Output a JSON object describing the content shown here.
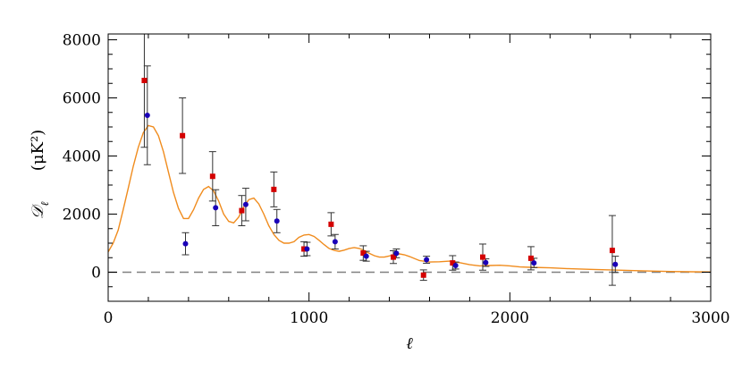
{
  "chart_data": {
    "type": "scatter",
    "title": "",
    "xlabel": "ℓ",
    "ylabel_symbol": "𝒟",
    "ylabel_subscript": "ℓ",
    "ylabel_unit": "(μK²)",
    "xlim": [
      0,
      3000
    ],
    "ylim": [
      -1000,
      8200
    ],
    "xticks": [
      0,
      1000,
      2000,
      3000
    ],
    "yticks": [
      0,
      2000,
      4000,
      6000,
      8000
    ],
    "xticks_labels": [
      "0",
      "1000",
      "2000",
      "3000"
    ],
    "yticks_labels": [
      "0",
      "2000",
      "4000",
      "6000",
      "8000"
    ],
    "grid": false,
    "zero_line": {
      "y": 0,
      "style": "dashed",
      "color": "#808080"
    },
    "colors": {
      "series_red": "#d40000",
      "series_blue": "#1a00b8",
      "model": "#f08c1e",
      "errorbar": "#333333"
    },
    "series": [
      {
        "marker": "square",
        "color": "#d40000",
        "points": [
          {
            "x": 180,
            "y": 6600,
            "err": 2300
          },
          {
            "x": 370,
            "y": 4700,
            "err": 1300
          },
          {
            "x": 520,
            "y": 3300,
            "err": 850
          },
          {
            "x": 665,
            "y": 2120,
            "err": 520
          },
          {
            "x": 825,
            "y": 2850,
            "err": 600
          },
          {
            "x": 975,
            "y": 800,
            "err": 250
          },
          {
            "x": 1110,
            "y": 1650,
            "err": 400
          },
          {
            "x": 1270,
            "y": 660,
            "err": 250
          },
          {
            "x": 1420,
            "y": 520,
            "err": 220
          },
          {
            "x": 1570,
            "y": -100,
            "err": 180
          },
          {
            "x": 1715,
            "y": 320,
            "err": 250
          },
          {
            "x": 1865,
            "y": 520,
            "err": 450
          },
          {
            "x": 2105,
            "y": 480,
            "err": 400
          },
          {
            "x": 2510,
            "y": 750,
            "err": 1200
          }
        ]
      },
      {
        "marker": "circle",
        "color": "#1a00b8",
        "points": [
          {
            "x": 195,
            "y": 5400,
            "err": 1700
          },
          {
            "x": 385,
            "y": 980,
            "err": 380
          },
          {
            "x": 535,
            "y": 2220,
            "err": 620
          },
          {
            "x": 685,
            "y": 2330,
            "err": 560
          },
          {
            "x": 840,
            "y": 1760,
            "err": 400
          },
          {
            "x": 990,
            "y": 800,
            "err": 230
          },
          {
            "x": 1130,
            "y": 1050,
            "err": 250
          },
          {
            "x": 1285,
            "y": 550,
            "err": 170
          },
          {
            "x": 1435,
            "y": 650,
            "err": 150
          },
          {
            "x": 1585,
            "y": 430,
            "err": 120
          },
          {
            "x": 1730,
            "y": 230,
            "err": 120
          },
          {
            "x": 1880,
            "y": 330,
            "err": 130
          },
          {
            "x": 2120,
            "y": 320,
            "err": 160
          },
          {
            "x": 2525,
            "y": 270,
            "err": 280
          }
        ]
      }
    ],
    "model_curve": {
      "x": [
        0,
        25,
        50,
        75,
        100,
        125,
        150,
        175,
        200,
        225,
        250,
        275,
        300,
        325,
        350,
        375,
        400,
        425,
        450,
        475,
        500,
        525,
        550,
        575,
        600,
        625,
        650,
        675,
        700,
        725,
        750,
        775,
        800,
        825,
        850,
        875,
        900,
        925,
        950,
        975,
        1000,
        1025,
        1050,
        1075,
        1100,
        1125,
        1150,
        1175,
        1200,
        1225,
        1250,
        1275,
        1300,
        1325,
        1350,
        1375,
        1400,
        1425,
        1450,
        1475,
        1500,
        1550,
        1600,
        1650,
        1700,
        1750,
        1800,
        1850,
        1900,
        1950,
        2000,
        2050,
        2100,
        2200,
        2300,
        2400,
        2500,
        2600,
        2700,
        2800,
        2900,
        3000
      ],
      "y": [
        700,
        1000,
        1450,
        2150,
        2900,
        3650,
        4300,
        4800,
        5050,
        5000,
        4700,
        4150,
        3450,
        2750,
        2200,
        1850,
        1850,
        2150,
        2550,
        2850,
        2950,
        2800,
        2450,
        2000,
        1750,
        1700,
        1900,
        2250,
        2500,
        2550,
        2350,
        2000,
        1600,
        1300,
        1100,
        1000,
        1000,
        1050,
        1200,
        1280,
        1300,
        1230,
        1100,
        950,
        820,
        750,
        720,
        760,
        820,
        850,
        820,
        750,
        650,
        570,
        520,
        520,
        560,
        610,
        630,
        600,
        540,
        400,
        350,
        360,
        380,
        330,
        260,
        220,
        230,
        240,
        220,
        180,
        170,
        150,
        120,
        100,
        80,
        60,
        40,
        25,
        15,
        10
      ]
    }
  }
}
